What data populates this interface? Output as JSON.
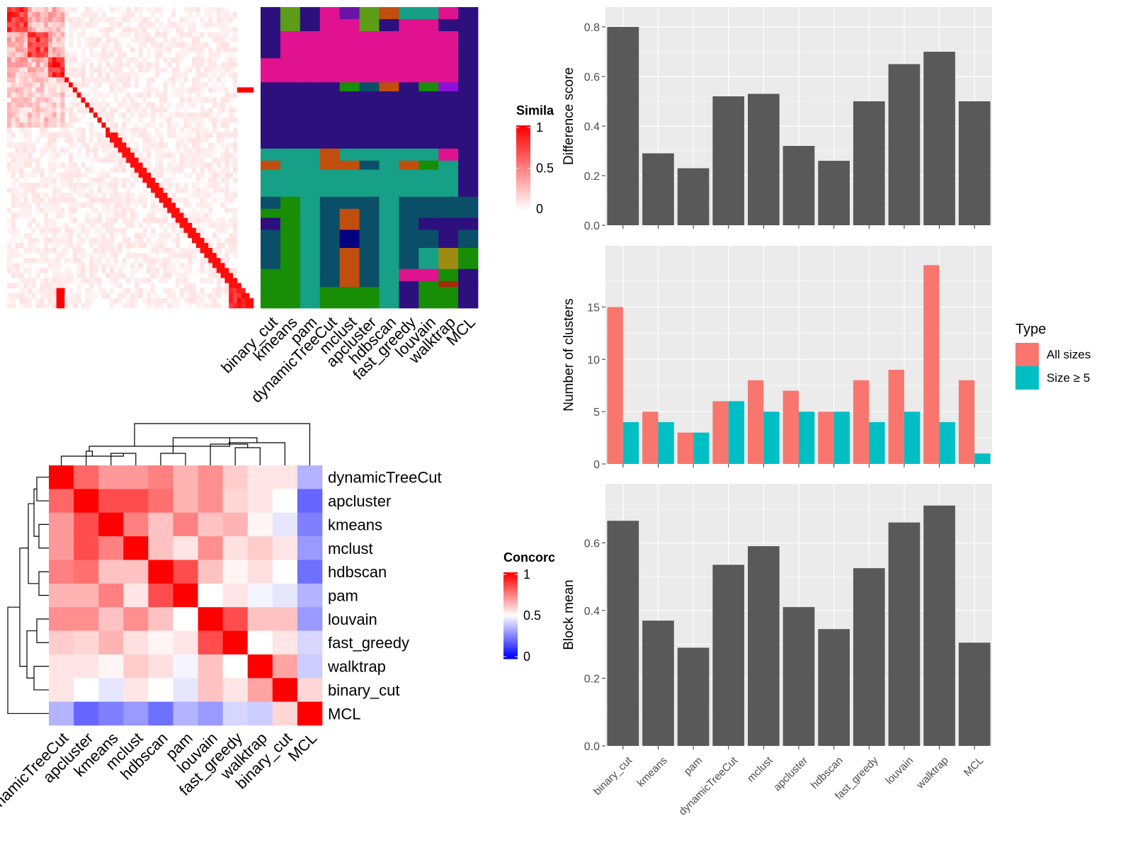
{
  "colors": {
    "panel_bg": "#ebebeb",
    "grid": "#ffffff",
    "bar_dark": "#595959",
    "all_sizes": "#f8766d",
    "size_ge5": "#00bfc4",
    "heat_high": "#ff0000",
    "heat_low_blue": "#0000ff"
  },
  "methods": [
    "binary_cut",
    "kmeans",
    "pam",
    "dynamicTreeCut",
    "mclust",
    "apcluster",
    "hdbscan",
    "fast_greedy",
    "louvain",
    "walktrap",
    "MCL"
  ],
  "similarity_legend": {
    "title": "Simila",
    "ticks": [
      "1",
      "0.5",
      "0"
    ]
  },
  "concordance": {
    "title": "Concorc",
    "ticks": [
      "1",
      "0.5",
      "0"
    ],
    "order": [
      "dynamicTreeCut",
      "apcluster",
      "kmeans",
      "mclust",
      "hdbscan",
      "pam",
      "louvain",
      "fast_greedy",
      "walktrap",
      "binary_cut",
      "MCL"
    ],
    "matrix": [
      [
        1.0,
        0.8,
        0.7,
        0.7,
        0.75,
        0.65,
        0.72,
        0.6,
        0.55,
        0.55,
        0.35
      ],
      [
        0.8,
        1.0,
        0.85,
        0.85,
        0.78,
        0.65,
        0.72,
        0.58,
        0.55,
        0.5,
        0.2
      ],
      [
        0.7,
        0.85,
        1.0,
        0.75,
        0.62,
        0.75,
        0.62,
        0.65,
        0.52,
        0.45,
        0.25
      ],
      [
        0.7,
        0.85,
        0.75,
        1.0,
        0.62,
        0.55,
        0.72,
        0.56,
        0.6,
        0.55,
        0.3
      ],
      [
        0.75,
        0.78,
        0.62,
        0.62,
        1.0,
        0.85,
        0.62,
        0.52,
        0.56,
        0.5,
        0.22
      ],
      [
        0.65,
        0.65,
        0.75,
        0.55,
        0.85,
        1.0,
        0.5,
        0.55,
        0.48,
        0.45,
        0.35
      ],
      [
        0.72,
        0.72,
        0.62,
        0.72,
        0.62,
        0.5,
        1.0,
        0.85,
        0.62,
        0.62,
        0.3
      ],
      [
        0.6,
        0.58,
        0.65,
        0.56,
        0.52,
        0.55,
        0.85,
        1.0,
        0.5,
        0.55,
        0.42
      ],
      [
        0.55,
        0.55,
        0.52,
        0.6,
        0.56,
        0.48,
        0.62,
        0.5,
        1.0,
        0.68,
        0.4
      ],
      [
        0.55,
        0.5,
        0.45,
        0.55,
        0.5,
        0.45,
        0.62,
        0.55,
        0.68,
        1.0,
        0.58
      ],
      [
        0.35,
        0.2,
        0.25,
        0.3,
        0.22,
        0.35,
        0.3,
        0.42,
        0.4,
        0.58,
        1.0
      ]
    ]
  },
  "chart_data": [
    {
      "type": "bar",
      "categories": [
        "binary_cut",
        "kmeans",
        "pam",
        "dynamicTreeCut",
        "mclust",
        "apcluster",
        "hdbscan",
        "fast_greedy",
        "louvain",
        "walktrap",
        "MCL"
      ],
      "values": [
        0.8,
        0.29,
        0.23,
        0.52,
        0.53,
        0.32,
        0.26,
        0.5,
        0.65,
        0.7,
        0.5
      ],
      "ylabel": "Difference score",
      "ylim": [
        0,
        0.84
      ],
      "yticks": [
        "0.0",
        "0.2",
        "0.4",
        "0.6",
        "0.8"
      ]
    },
    {
      "type": "bar",
      "categories": [
        "binary_cut",
        "kmeans",
        "pam",
        "dynamicTreeCut",
        "mclust",
        "apcluster",
        "hdbscan",
        "fast_greedy",
        "louvain",
        "walktrap",
        "MCL"
      ],
      "series": [
        {
          "name": "All sizes",
          "values": [
            15,
            5,
            3,
            6,
            8,
            7,
            5,
            8,
            9,
            19,
            8
          ]
        },
        {
          "name": "Size ≥ 5",
          "values": [
            4,
            4,
            3,
            6,
            5,
            5,
            5,
            4,
            5,
            4,
            1
          ]
        }
      ],
      "ylabel": "Number of clusters",
      "ylim": [
        0,
        19.9
      ],
      "yticks": [
        "0",
        "5",
        "10",
        "15"
      ],
      "legend_title": "Type",
      "legend_position": "right"
    },
    {
      "type": "bar",
      "categories": [
        "binary_cut",
        "kmeans",
        "pam",
        "dynamicTreeCut",
        "mclust",
        "apcluster",
        "hdbscan",
        "fast_greedy",
        "louvain",
        "walktrap",
        "MCL"
      ],
      "values": [
        0.665,
        0.37,
        0.29,
        0.535,
        0.59,
        0.41,
        0.345,
        0.525,
        0.66,
        0.71,
        0.305
      ],
      "ylabel": "Block mean",
      "ylim": [
        0,
        0.745
      ],
      "yticks": [
        "0.0",
        "0.2",
        "0.4",
        "0.6"
      ]
    }
  ]
}
